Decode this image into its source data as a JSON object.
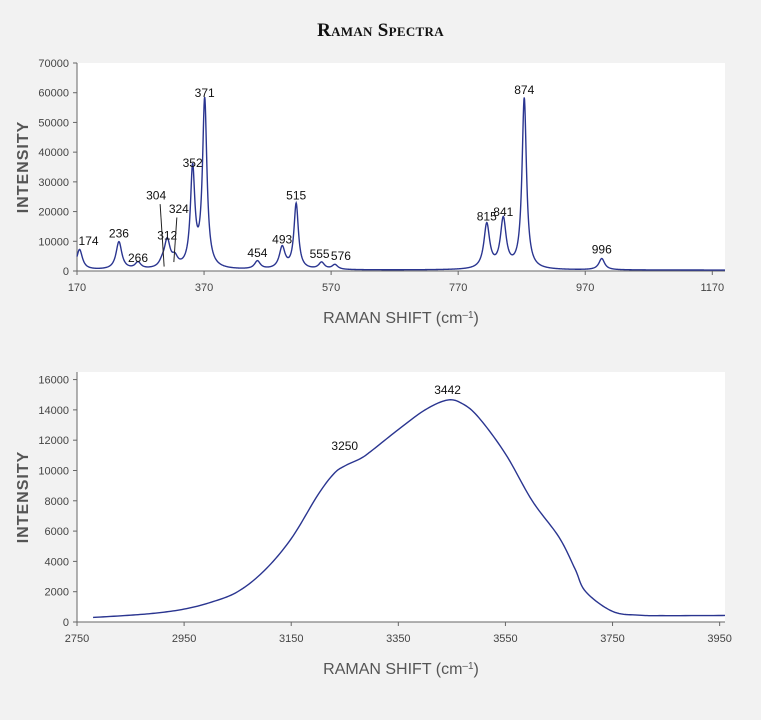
{
  "title": "Raman Spectra",
  "colors": {
    "line": "#2a3590",
    "axis": "#666666",
    "background": "#f2f2f2",
    "plot_bg": "#ffffff"
  },
  "chart_data": [
    {
      "type": "line",
      "ylabel": "INTENSITY",
      "xlabel_main": "RAMAN SHIFT (cm",
      "xlabel_sup": "–1",
      "xlabel_end": ")",
      "xlim": [
        170,
        1190
      ],
      "ylim": [
        0,
        70000
      ],
      "xticks": [
        170,
        370,
        570,
        770,
        970,
        1170
      ],
      "yticks": [
        0,
        10000,
        20000,
        30000,
        40000,
        50000,
        60000,
        70000
      ],
      "baseline": 300,
      "peaks": [
        {
          "x": 174,
          "y": 6800,
          "label": "174"
        },
        {
          "x": 236,
          "y": 9300,
          "label": "236"
        },
        {
          "x": 266,
          "y": 2200,
          "label": "266"
        },
        {
          "x": 304,
          "y": 1500,
          "label": "304"
        },
        {
          "x": 312,
          "y": 9200,
          "label": "312"
        },
        {
          "x": 324,
          "y": 3000,
          "label": "324"
        },
        {
          "x": 352,
          "y": 33000,
          "label": "352"
        },
        {
          "x": 371,
          "y": 56500,
          "label": "371"
        },
        {
          "x": 454,
          "y": 2700,
          "label": "454"
        },
        {
          "x": 493,
          "y": 7300,
          "label": "493"
        },
        {
          "x": 515,
          "y": 22000,
          "label": "515"
        },
        {
          "x": 555,
          "y": 2300,
          "label": "555"
        },
        {
          "x": 576,
          "y": 1600,
          "label": "576"
        },
        {
          "x": 815,
          "y": 15000,
          "label": "815"
        },
        {
          "x": 841,
          "y": 16500,
          "label": "841"
        },
        {
          "x": 874,
          "y": 57500,
          "label": "874"
        },
        {
          "x": 996,
          "y": 3800,
          "label": "996"
        }
      ]
    },
    {
      "type": "line",
      "ylabel": "INTENSITY",
      "xlabel_main": "RAMAN SHIFT (cm",
      "xlabel_sup": "–1",
      "xlabel_end": ")",
      "xlim": [
        2750,
        3960
      ],
      "ylim": [
        0,
        16500
      ],
      "xticks": [
        2750,
        2950,
        3150,
        3350,
        3550,
        3750,
        3950
      ],
      "yticks": [
        0,
        2000,
        4000,
        6000,
        8000,
        10000,
        12000,
        14000,
        16000
      ],
      "x": [
        2780,
        2850,
        2900,
        2950,
        3000,
        3050,
        3100,
        3150,
        3200,
        3230,
        3250,
        3280,
        3300,
        3350,
        3400,
        3442,
        3470,
        3500,
        3550,
        3600,
        3650,
        3680,
        3700,
        3750,
        3800,
        3850,
        3960
      ],
      "y": [
        300,
        450,
        600,
        850,
        1300,
        2000,
        3400,
        5500,
        8400,
        9800,
        10300,
        10800,
        11300,
        12700,
        14000,
        14650,
        14400,
        13500,
        11100,
        8000,
        5600,
        3500,
        2000,
        700,
        450,
        420,
        430
      ],
      "peaks": [
        {
          "x": 3250,
          "y": 10300,
          "label": "3250"
        },
        {
          "x": 3442,
          "y": 14650,
          "label": "3442"
        }
      ]
    }
  ]
}
